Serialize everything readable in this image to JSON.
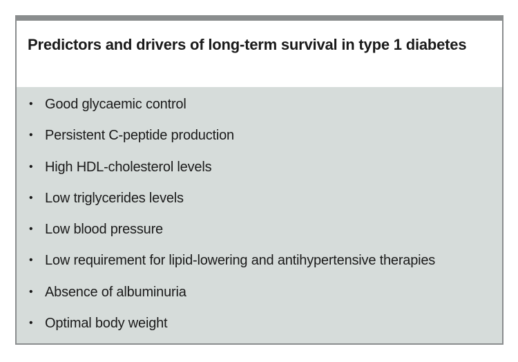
{
  "panel": {
    "title": "Predictors and drivers of long-term survival in type 1 diabetes",
    "bullet_glyph": "•",
    "items": [
      "Good glycaemic control",
      "Persistent C-peptide production",
      "High HDL-cholesterol levels",
      "Low triglycerides levels",
      "Low blood pressure",
      "Low requirement for lipid-lowering and antihypertensive therapies",
      "Absence of albuminuria",
      "Optimal body weight"
    ]
  },
  "colors": {
    "border": "#8a8d8e",
    "list_background": "#d6dcda",
    "header_background": "#ffffff",
    "text": "#1a1a1a"
  }
}
